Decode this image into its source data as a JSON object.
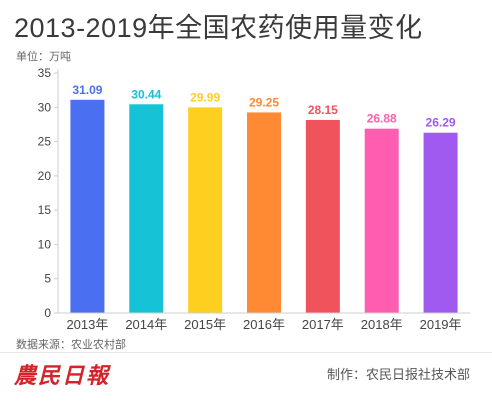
{
  "header": {
    "title": "2013-2019年全国农药使用量变化",
    "unit": "单位：万吨"
  },
  "footer": {
    "source": "数据来源：农业农村部",
    "logo_text": "農民日報",
    "credit": "制作：农民日报社技术部"
  },
  "colors": {
    "axis": "#cfcfcf",
    "tick_text": "#444444",
    "watermark": "#c8a37a"
  },
  "chart_data": {
    "type": "bar",
    "categories": [
      "2013年",
      "2014年",
      "2015年",
      "2016年",
      "2017年",
      "2018年",
      "2019年"
    ],
    "values": [
      31.09,
      30.44,
      29.99,
      29.25,
      28.15,
      26.88,
      26.29
    ],
    "value_labels": [
      "31.09",
      "30.44",
      "29.99",
      "29.25",
      "28.15",
      "26.88",
      "26.29"
    ],
    "bar_colors": [
      "#4a6ff0",
      "#16c3d6",
      "#ffcf1f",
      "#ff8a33",
      "#f0535b",
      "#ff5db0",
      "#a05af0"
    ],
    "ylim": [
      0,
      35
    ],
    "yticks": [
      0,
      5,
      10,
      15,
      20,
      25,
      30,
      35
    ],
    "ytick_labels": [
      "0",
      "5",
      "10",
      "15",
      "20",
      "25",
      "30",
      "35"
    ],
    "title": "2013-2019年全国农药使用量变化",
    "xlabel": "",
    "ylabel": "单位：万吨",
    "grid": false,
    "legend": "none"
  }
}
